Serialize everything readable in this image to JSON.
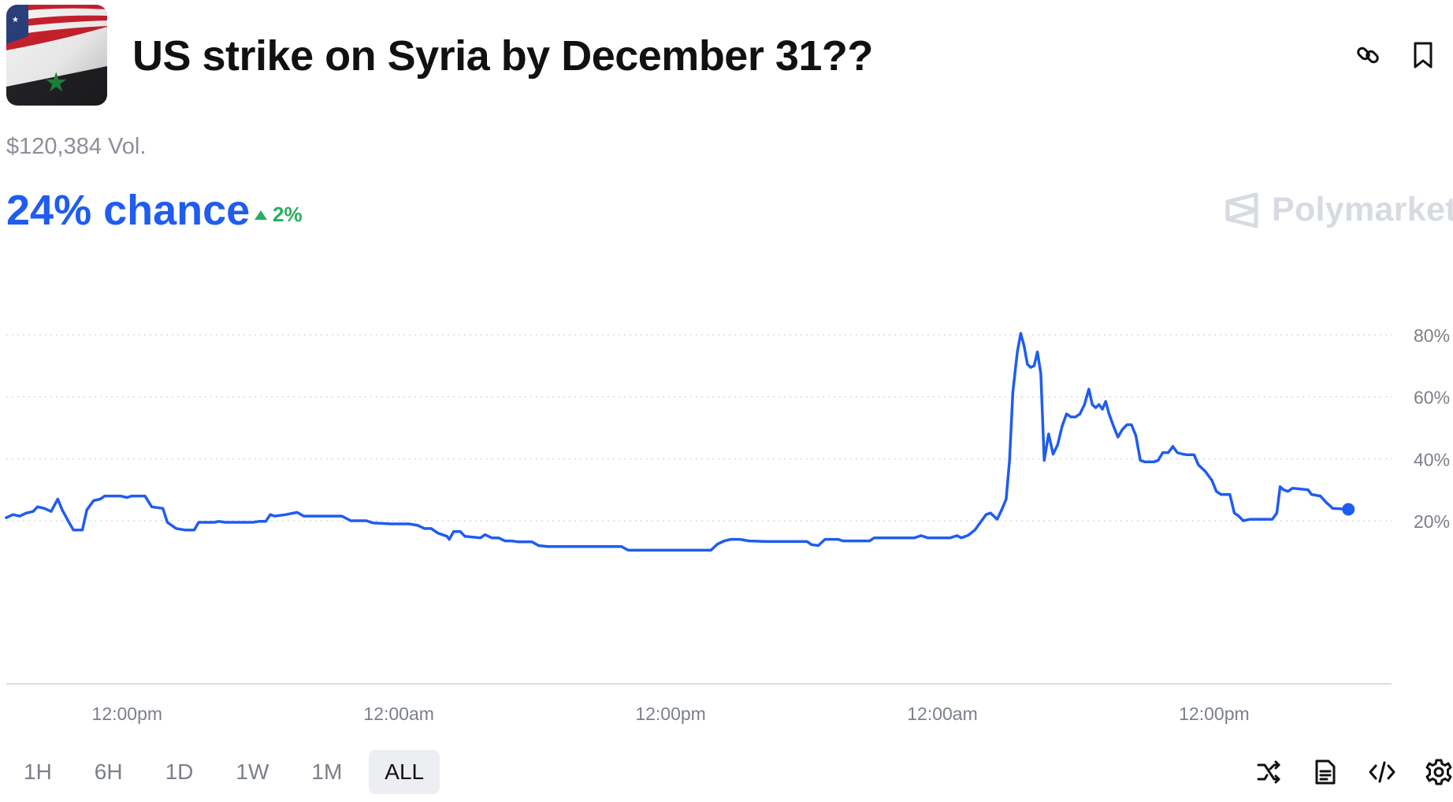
{
  "header": {
    "title": "US strike on Syria by December 31??",
    "icons": [
      "link-icon",
      "bookmark-icon"
    ]
  },
  "market": {
    "volume": "$120,384 Vol.",
    "chance": "24% chance",
    "delta": "2%",
    "brand": "Polymarket"
  },
  "colors": {
    "line": "#1f5cf0",
    "delta_up": "#27ae60",
    "grid": "#d9dce1",
    "axis_text": "#7b8089"
  },
  "chart_data": {
    "type": "line",
    "title": "",
    "xlabel": "",
    "ylabel": "",
    "x_tick_labels": [
      "12:00pm",
      "12:00am",
      "12:00pm",
      "12:00am",
      "12:00pm"
    ],
    "y_tick_labels": [
      "80%",
      "60%",
      "40%",
      "20%"
    ],
    "y_ticks": [
      80,
      60,
      40,
      20
    ],
    "ylim": [
      6,
      82
    ],
    "x_span_hours": 62,
    "grid": true,
    "series": [
      {
        "values": [
          [
            0,
            21.5
          ],
          [
            0.3,
            22.5
          ],
          [
            0.6,
            22
          ],
          [
            0.9,
            23
          ],
          [
            1.2,
            23.5
          ],
          [
            1.4,
            25
          ],
          [
            1.7,
            24.5
          ],
          [
            2,
            23.5
          ],
          [
            2.3,
            27.5
          ],
          [
            2.5,
            24
          ],
          [
            2.8,
            20
          ],
          [
            3,
            17.5
          ],
          [
            3.4,
            17.5
          ],
          [
            3.6,
            24
          ],
          [
            3.9,
            27
          ],
          [
            4.2,
            27.5
          ],
          [
            4.4,
            28.5
          ],
          [
            5.1,
            28.5
          ],
          [
            5.4,
            28
          ],
          [
            5.6,
            28.5
          ],
          [
            6.2,
            28.5
          ],
          [
            6.5,
            25
          ],
          [
            7,
            24.5
          ],
          [
            7.2,
            20
          ],
          [
            7.6,
            18
          ],
          [
            8,
            17.5
          ],
          [
            8.4,
            17.5
          ],
          [
            8.6,
            20
          ],
          [
            9.3,
            20
          ],
          [
            9.5,
            20.3
          ],
          [
            9.8,
            20
          ],
          [
            11,
            20
          ],
          [
            11.3,
            20.3
          ],
          [
            11.6,
            20.3
          ],
          [
            11.8,
            22.5
          ],
          [
            12,
            22
          ],
          [
            12.5,
            22.5
          ],
          [
            13,
            23.2
          ],
          [
            13.3,
            22
          ],
          [
            15,
            22
          ],
          [
            15.4,
            20.5
          ],
          [
            16.1,
            20.5
          ],
          [
            16.4,
            19.8
          ],
          [
            17.2,
            19.5
          ],
          [
            17.5,
            19.5
          ],
          [
            18,
            19.5
          ],
          [
            18.4,
            19
          ],
          [
            18.7,
            18
          ],
          [
            19,
            18
          ],
          [
            19.3,
            16.5
          ],
          [
            19.5,
            16
          ],
          [
            19.7,
            15.5
          ],
          [
            19.8,
            14.5
          ],
          [
            20,
            17
          ],
          [
            20.3,
            17
          ],
          [
            20.5,
            15.5
          ],
          [
            21.2,
            15
          ],
          [
            21.4,
            16
          ],
          [
            21.7,
            15
          ],
          [
            22,
            15
          ],
          [
            22.3,
            14
          ],
          [
            22.6,
            14
          ],
          [
            22.9,
            13.7
          ],
          [
            23.5,
            13.7
          ],
          [
            23.8,
            12.5
          ],
          [
            24.2,
            12.2
          ],
          [
            27.5,
            12.2
          ],
          [
            27.8,
            11
          ],
          [
            31.5,
            11
          ],
          [
            31.8,
            13
          ],
          [
            32.1,
            14
          ],
          [
            32.4,
            14.5
          ],
          [
            32.8,
            14.5
          ],
          [
            33.2,
            14
          ],
          [
            34,
            13.8
          ],
          [
            35.8,
            13.8
          ],
          [
            36,
            12.8
          ],
          [
            36.3,
            12.5
          ],
          [
            36.6,
            14.5
          ],
          [
            37.2,
            14.5
          ],
          [
            37.4,
            14
          ],
          [
            38.6,
            14
          ],
          [
            38.8,
            15
          ],
          [
            40.6,
            15
          ],
          [
            40.9,
            15.7
          ],
          [
            41.2,
            15
          ],
          [
            42.2,
            15
          ],
          [
            42.5,
            15.7
          ],
          [
            42.7,
            15
          ],
          [
            43,
            15.8
          ],
          [
            43.3,
            17.5
          ],
          [
            43.6,
            20.5
          ],
          [
            43.8,
            22.5
          ],
          [
            44,
            23
          ],
          [
            44.3,
            21
          ],
          [
            44.5,
            24
          ],
          [
            44.7,
            27.5
          ],
          [
            44.85,
            40
          ],
          [
            45,
            62
          ],
          [
            45.2,
            75
          ],
          [
            45.35,
            81
          ],
          [
            45.5,
            77
          ],
          [
            45.65,
            71
          ],
          [
            45.8,
            70
          ],
          [
            45.95,
            70.5
          ],
          [
            46.1,
            75
          ],
          [
            46.25,
            68
          ],
          [
            46.4,
            40
          ],
          [
            46.6,
            48.5
          ],
          [
            46.8,
            42
          ],
          [
            47,
            45
          ],
          [
            47.2,
            51
          ],
          [
            47.4,
            55
          ],
          [
            47.6,
            54
          ],
          [
            47.8,
            54
          ],
          [
            48,
            55
          ],
          [
            48.2,
            58
          ],
          [
            48.4,
            63
          ],
          [
            48.55,
            58
          ],
          [
            48.7,
            57
          ],
          [
            48.85,
            58
          ],
          [
            49,
            56.5
          ],
          [
            49.15,
            59
          ],
          [
            49.3,
            55
          ],
          [
            49.5,
            51
          ],
          [
            49.7,
            47.5
          ],
          [
            49.9,
            50
          ],
          [
            50.1,
            51.5
          ],
          [
            50.3,
            51.5
          ],
          [
            50.5,
            48
          ],
          [
            50.7,
            40
          ],
          [
            50.9,
            39.5
          ],
          [
            51.3,
            39.5
          ],
          [
            51.5,
            40
          ],
          [
            51.7,
            42.5
          ],
          [
            51.95,
            42.5
          ],
          [
            52.15,
            44.5
          ],
          [
            52.35,
            42.5
          ],
          [
            52.6,
            42
          ],
          [
            52.8,
            41.8
          ],
          [
            53.1,
            41.8
          ],
          [
            53.3,
            38.5
          ],
          [
            53.6,
            36.5
          ],
          [
            53.9,
            33.5
          ],
          [
            54.1,
            30
          ],
          [
            54.3,
            29
          ],
          [
            54.7,
            29
          ],
          [
            54.9,
            23
          ],
          [
            55.1,
            22
          ],
          [
            55.3,
            20.5
          ],
          [
            55.6,
            21
          ],
          [
            56.6,
            21
          ],
          [
            56.8,
            23
          ],
          [
            56.95,
            31.5
          ],
          [
            57.1,
            30.5
          ],
          [
            57.3,
            30
          ],
          [
            57.5,
            31
          ],
          [
            58.2,
            30.5
          ],
          [
            58.35,
            29
          ],
          [
            58.75,
            28.5
          ],
          [
            59,
            26.5
          ],
          [
            59.3,
            24.5
          ],
          [
            59.8,
            24.3
          ],
          [
            60,
            24.2
          ]
        ]
      }
    ]
  },
  "time_ranges": [
    "1H",
    "6H",
    "1D",
    "1W",
    "1M",
    "ALL"
  ],
  "active_range": "ALL",
  "bottom_icons": [
    "shuffle-icon",
    "document-icon",
    "embed-code-icon",
    "settings-icon"
  ]
}
